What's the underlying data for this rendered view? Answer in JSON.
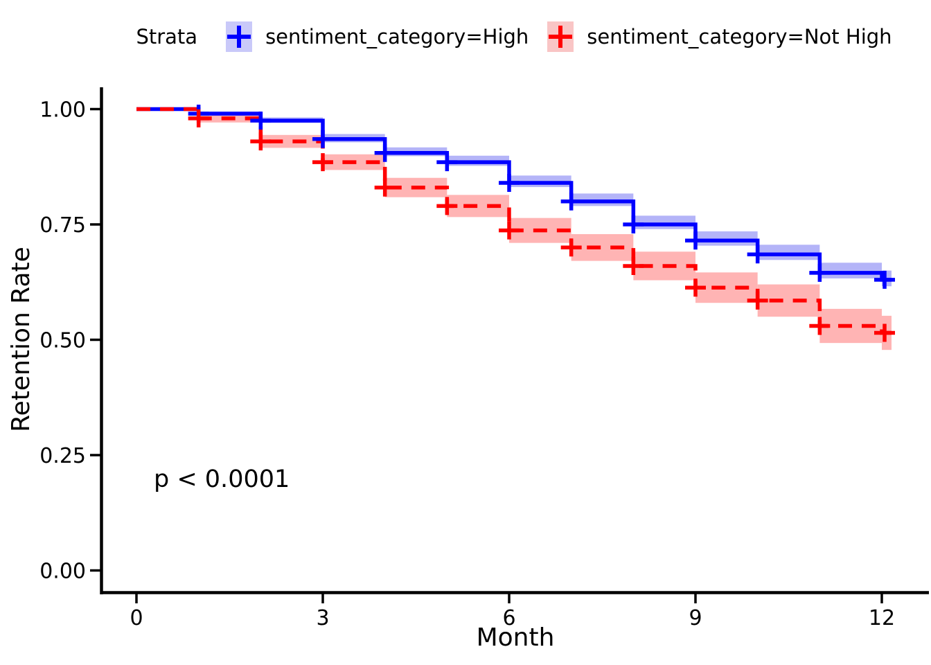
{
  "chart_data": {
    "type": "line",
    "chart_kind": "kaplan-meier-survival",
    "title": "",
    "xlabel": "Month",
    "ylabel": "Retention Rate",
    "annotation": "p < 0.0001",
    "xlim": [
      0,
      12
    ],
    "ylim": [
      0.0,
      1.0
    ],
    "x_ticks": [
      {
        "v": 0,
        "label": "0"
      },
      {
        "v": 3,
        "label": "3"
      },
      {
        "v": 6,
        "label": "6"
      },
      {
        "v": 9,
        "label": "9"
      },
      {
        "v": 12,
        "label": "12"
      }
    ],
    "y_ticks": [
      {
        "v": 0.0,
        "label": "0.00"
      },
      {
        "v": 0.25,
        "label": "0.25"
      },
      {
        "v": 0.5,
        "label": "0.50"
      },
      {
        "v": 0.75,
        "label": "0.75"
      },
      {
        "v": 1.0,
        "label": "1.00"
      }
    ],
    "grid": false,
    "legend": {
      "title": "Strata",
      "position": "top",
      "entries": [
        {
          "label": "sentiment_category=High",
          "color": "#0000FF",
          "key_bg": "#C9C9F9"
        },
        {
          "label": "sentiment_category=Not High",
          "color": "#FF0000",
          "key_bg": "#F9C5C5"
        }
      ]
    },
    "series": [
      {
        "name": "sentiment_category=High",
        "color": "#0000FF",
        "band_color": "#B4B4F8",
        "linestyle": "solid",
        "months": [
          0,
          1,
          2,
          3,
          4,
          5,
          6,
          7,
          8,
          9,
          10,
          11,
          12
        ],
        "survival": [
          1.0,
          0.99,
          0.975,
          0.935,
          0.905,
          0.885,
          0.84,
          0.8,
          0.75,
          0.715,
          0.685,
          0.645,
          0.63
        ],
        "ci_upper": [
          1.0,
          0.995,
          0.982,
          0.946,
          0.917,
          0.899,
          0.856,
          0.817,
          0.769,
          0.735,
          0.706,
          0.667,
          0.65
        ],
        "ci_lower": [
          1.0,
          0.986,
          0.97,
          0.928,
          0.898,
          0.877,
          0.831,
          0.79,
          0.74,
          0.704,
          0.673,
          0.633,
          0.616
        ],
        "censor_months": [
          1,
          2,
          3,
          4,
          5,
          6,
          7,
          8,
          9,
          10,
          11,
          12
        ]
      },
      {
        "name": "sentiment_category=Not High",
        "color": "#FF0000",
        "band_color": "#FFB4B4",
        "linestyle": "dashed",
        "months": [
          0,
          1,
          2,
          3,
          4,
          5,
          6,
          7,
          8,
          9,
          10,
          11,
          12
        ],
        "survival": [
          1.0,
          0.98,
          0.93,
          0.885,
          0.83,
          0.79,
          0.737,
          0.7,
          0.66,
          0.613,
          0.585,
          0.53,
          0.515
        ],
        "ci_upper": [
          1.0,
          0.989,
          0.944,
          0.902,
          0.851,
          0.814,
          0.764,
          0.729,
          0.691,
          0.646,
          0.62,
          0.567,
          0.552
        ],
        "ci_lower": [
          1.0,
          0.971,
          0.916,
          0.868,
          0.809,
          0.766,
          0.71,
          0.671,
          0.629,
          0.58,
          0.55,
          0.493,
          0.478
        ]
      }
    ]
  }
}
